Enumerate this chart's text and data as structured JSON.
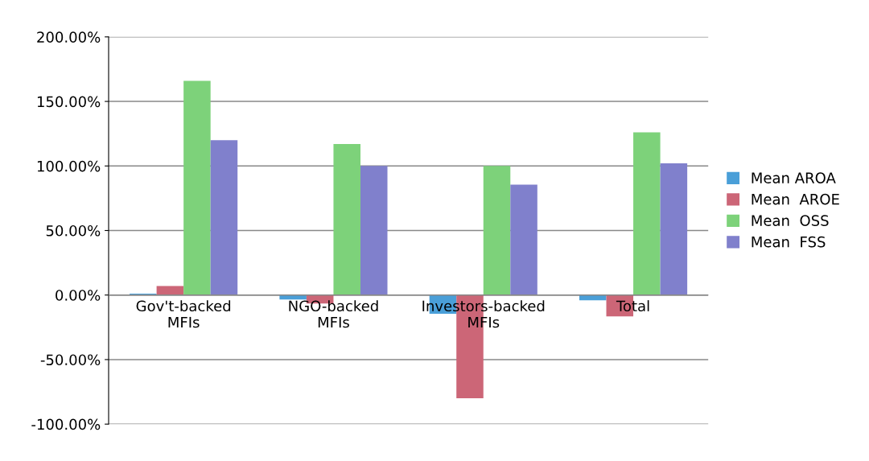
{
  "chart_data": {
    "type": "bar",
    "categories": [
      "Gov't-backed\nMFIs",
      "NGO-backed\nMFIs",
      "Investors-backed\nMFIs",
      "Total"
    ],
    "series": [
      {
        "name": "Mean AROA",
        "color": "#4a9fd8",
        "values": [
          1,
          -3.5,
          -14.5,
          -4
        ]
      },
      {
        "name": "Mean  AROE",
        "color": "#cc6677",
        "values": [
          7,
          -6.5,
          -80,
          -16.5
        ]
      },
      {
        "name": "Mean  OSS",
        "color": "#7dd27a",
        "values": [
          166,
          117,
          100,
          126
        ]
      },
      {
        "name": "Mean  FSS",
        "color": "#8080cc",
        "values": [
          120,
          100,
          85.5,
          102
        ]
      }
    ],
    "ylim": [
      -100,
      200
    ],
    "yticks": [
      {
        "value": -100,
        "label": "-100.00%"
      },
      {
        "value": -50,
        "label": "-50.00%"
      },
      {
        "value": 0,
        "label": "0.00%"
      },
      {
        "value": 50,
        "label": "50.00%"
      },
      {
        "value": 100,
        "label": "100.00%"
      },
      {
        "value": 150,
        "label": "150.00%"
      },
      {
        "value": 200,
        "label": "200.00%"
      }
    ],
    "grid": "y",
    "legend": "right"
  }
}
